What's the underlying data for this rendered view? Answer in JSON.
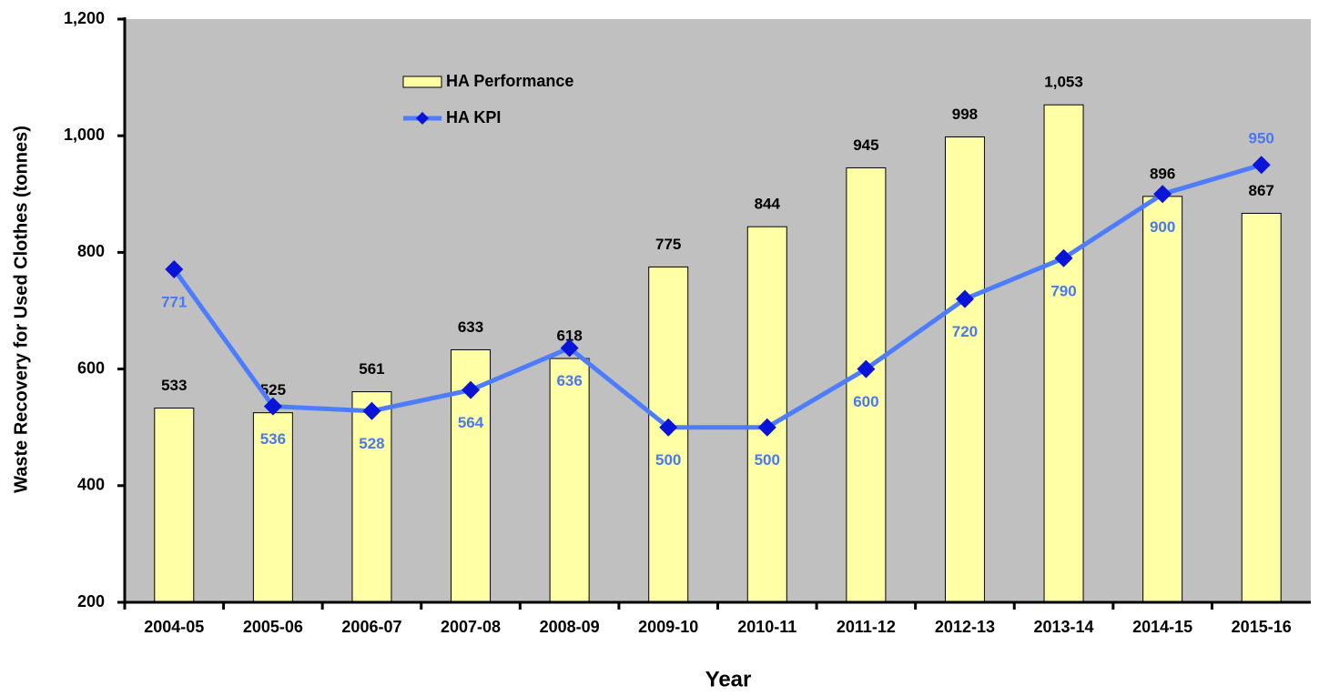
{
  "chart_data": {
    "type": "combo",
    "xlabel": "Year",
    "ylabel": "Waste Recovery for Used Clothes (tonnes)",
    "categories": [
      "2004-05",
      "2005-06",
      "2006-07",
      "2007-08",
      "2008-09",
      "2009-10",
      "2010-11",
      "2011-12",
      "2012-13",
      "2013-14",
      "2014-15",
      "2015-16"
    ],
    "series": [
      {
        "name": "HA Performance",
        "type": "bar",
        "color": "#ffffa6",
        "values": [
          533,
          525,
          561,
          633,
          618,
          775,
          844,
          945,
          998,
          1053,
          896,
          867
        ],
        "value_labels": [
          "533",
          "525",
          "561",
          "633",
          "618",
          "775",
          "844",
          "945",
          "998",
          "1,053",
          "896",
          "867"
        ]
      },
      {
        "name": "HA KPI",
        "type": "line",
        "color": "#4d7cff",
        "marker_color": "#0a14d8",
        "label_color": "#4a78f0",
        "values": [
          771,
          536,
          528,
          564,
          636,
          500,
          500,
          600,
          720,
          790,
          900,
          950
        ]
      }
    ],
    "ylim": [
      200,
      1200
    ],
    "yticks": [
      200,
      400,
      600,
      800,
      {
        "value": 1000,
        "label": "1,000"
      },
      {
        "value": 1200,
        "label": "1,200"
      }
    ],
    "background": "#c0c0c0"
  }
}
